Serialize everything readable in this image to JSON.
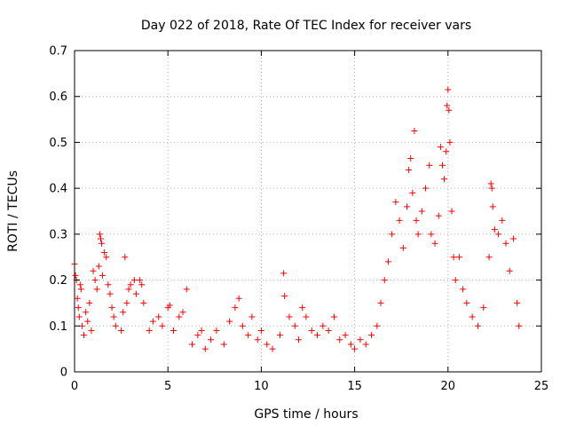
{
  "chart_data": {
    "type": "scatter",
    "title": "Day 022 of 2018, Rate Of TEC Index for receiver vars",
    "xlabel": "GPS time / hours",
    "ylabel": "ROTI / TECUs",
    "xlim": [
      0,
      25
    ],
    "ylim": [
      0,
      0.7
    ],
    "xticks": [
      "0",
      "5",
      "10",
      "15",
      "20",
      "25"
    ],
    "yticks": [
      "0",
      "0.1",
      "0.2",
      "0.3",
      "0.4",
      "0.5",
      "0.6",
      "0.7"
    ],
    "xtick_values": [
      0,
      5,
      10,
      15,
      20,
      25
    ],
    "ytick_values": [
      0,
      0.1,
      0.2,
      0.3,
      0.4,
      0.5,
      0.6,
      0.7
    ],
    "grid": true,
    "marker": "+",
    "color": "#ff0000",
    "series": [
      {
        "name": "ROTI",
        "points": [
          [
            0.0,
            0.235
          ],
          [
            0.05,
            0.21
          ],
          [
            0.1,
            0.2
          ],
          [
            0.15,
            0.16
          ],
          [
            0.2,
            0.14
          ],
          [
            0.25,
            0.12
          ],
          [
            0.3,
            0.19
          ],
          [
            0.35,
            0.18
          ],
          [
            0.4,
            0.1
          ],
          [
            0.5,
            0.08
          ],
          [
            0.6,
            0.13
          ],
          [
            0.7,
            0.11
          ],
          [
            0.8,
            0.15
          ],
          [
            0.9,
            0.09
          ],
          [
            1.0,
            0.22
          ],
          [
            1.1,
            0.2
          ],
          [
            1.2,
            0.18
          ],
          [
            1.3,
            0.23
          ],
          [
            1.35,
            0.3
          ],
          [
            1.4,
            0.29
          ],
          [
            1.45,
            0.28
          ],
          [
            1.5,
            0.21
          ],
          [
            1.6,
            0.26
          ],
          [
            1.7,
            0.25
          ],
          [
            1.8,
            0.19
          ],
          [
            1.9,
            0.17
          ],
          [
            2.0,
            0.14
          ],
          [
            2.1,
            0.12
          ],
          [
            2.2,
            0.1
          ],
          [
            2.5,
            0.09
          ],
          [
            2.6,
            0.13
          ],
          [
            2.7,
            0.25
          ],
          [
            2.8,
            0.15
          ],
          [
            2.9,
            0.18
          ],
          [
            3.0,
            0.19
          ],
          [
            3.2,
            0.2
          ],
          [
            3.3,
            0.17
          ],
          [
            3.5,
            0.2
          ],
          [
            3.6,
            0.19
          ],
          [
            3.7,
            0.15
          ],
          [
            4.0,
            0.09
          ],
          [
            4.2,
            0.11
          ],
          [
            4.5,
            0.12
          ],
          [
            4.7,
            0.1
          ],
          [
            5.0,
            0.14
          ],
          [
            5.1,
            0.145
          ],
          [
            5.3,
            0.09
          ],
          [
            5.6,
            0.12
          ],
          [
            5.8,
            0.13
          ],
          [
            6.0,
            0.18
          ],
          [
            6.3,
            0.06
          ],
          [
            6.6,
            0.08
          ],
          [
            6.8,
            0.09
          ],
          [
            7.0,
            0.05
          ],
          [
            7.3,
            0.07
          ],
          [
            7.6,
            0.09
          ],
          [
            8.0,
            0.06
          ],
          [
            8.3,
            0.11
          ],
          [
            8.6,
            0.14
          ],
          [
            8.8,
            0.16
          ],
          [
            9.0,
            0.1
          ],
          [
            9.3,
            0.08
          ],
          [
            9.5,
            0.12
          ],
          [
            9.8,
            0.07
          ],
          [
            10.0,
            0.09
          ],
          [
            10.3,
            0.06
          ],
          [
            10.6,
            0.05
          ],
          [
            11.0,
            0.08
          ],
          [
            11.2,
            0.215
          ],
          [
            11.25,
            0.165
          ],
          [
            11.5,
            0.12
          ],
          [
            11.8,
            0.1
          ],
          [
            12.0,
            0.07
          ],
          [
            12.2,
            0.14
          ],
          [
            12.4,
            0.12
          ],
          [
            12.7,
            0.09
          ],
          [
            13.0,
            0.08
          ],
          [
            13.3,
            0.1
          ],
          [
            13.6,
            0.09
          ],
          [
            13.9,
            0.12
          ],
          [
            14.2,
            0.07
          ],
          [
            14.5,
            0.08
          ],
          [
            14.8,
            0.06
          ],
          [
            15.0,
            0.05
          ],
          [
            15.3,
            0.07
          ],
          [
            15.6,
            0.06
          ],
          [
            15.9,
            0.08
          ],
          [
            16.2,
            0.1
          ],
          [
            16.4,
            0.15
          ],
          [
            16.6,
            0.2
          ],
          [
            16.8,
            0.24
          ],
          [
            17.0,
            0.3
          ],
          [
            17.2,
            0.37
          ],
          [
            17.4,
            0.33
          ],
          [
            17.6,
            0.27
          ],
          [
            17.8,
            0.36
          ],
          [
            17.9,
            0.44
          ],
          [
            18.0,
            0.465
          ],
          [
            18.1,
            0.39
          ],
          [
            18.2,
            0.525
          ],
          [
            18.3,
            0.33
          ],
          [
            18.4,
            0.3
          ],
          [
            18.6,
            0.35
          ],
          [
            18.8,
            0.4
          ],
          [
            19.0,
            0.45
          ],
          [
            19.1,
            0.3
          ],
          [
            19.3,
            0.28
          ],
          [
            19.5,
            0.34
          ],
          [
            19.6,
            0.49
          ],
          [
            19.7,
            0.45
          ],
          [
            19.8,
            0.42
          ],
          [
            19.9,
            0.48
          ],
          [
            19.95,
            0.58
          ],
          [
            20.0,
            0.615
          ],
          [
            20.05,
            0.57
          ],
          [
            20.1,
            0.5
          ],
          [
            20.2,
            0.35
          ],
          [
            20.3,
            0.25
          ],
          [
            20.4,
            0.2
          ],
          [
            20.6,
            0.25
          ],
          [
            20.8,
            0.18
          ],
          [
            21.0,
            0.15
          ],
          [
            21.3,
            0.12
          ],
          [
            21.6,
            0.1
          ],
          [
            21.9,
            0.14
          ],
          [
            22.2,
            0.25
          ],
          [
            22.3,
            0.41
          ],
          [
            22.35,
            0.4
          ],
          [
            22.4,
            0.36
          ],
          [
            22.5,
            0.31
          ],
          [
            22.7,
            0.3
          ],
          [
            22.9,
            0.33
          ],
          [
            23.1,
            0.28
          ],
          [
            23.3,
            0.22
          ],
          [
            23.5,
            0.29
          ],
          [
            23.7,
            0.15
          ],
          [
            23.8,
            0.1
          ]
        ]
      }
    ]
  }
}
